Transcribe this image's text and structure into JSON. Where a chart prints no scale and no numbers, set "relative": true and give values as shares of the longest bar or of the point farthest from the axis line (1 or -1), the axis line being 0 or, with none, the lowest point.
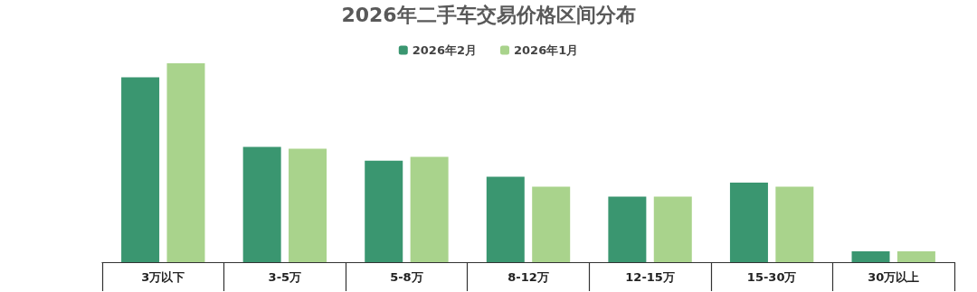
{
  "chart_data": {
    "type": "bar",
    "title": "2026年二手车交易价格区间分布",
    "relative": true,
    "legend": "top",
    "categories": [
      "3万以下",
      "3-5万",
      "5-8万",
      "8-12万",
      "12-15万",
      "15-30万",
      "30万以上"
    ],
    "series": [
      {
        "name": "2026年2月",
        "color": "#3a9670",
        "values": [
          0.93,
          0.58,
          0.51,
          0.43,
          0.33,
          0.4,
          0.055
        ]
      },
      {
        "name": "2026年1月",
        "color": "#a9d38c",
        "values": [
          1,
          0.57,
          0.53,
          0.38,
          0.33,
          0.38,
          0.055
        ]
      }
    ]
  }
}
